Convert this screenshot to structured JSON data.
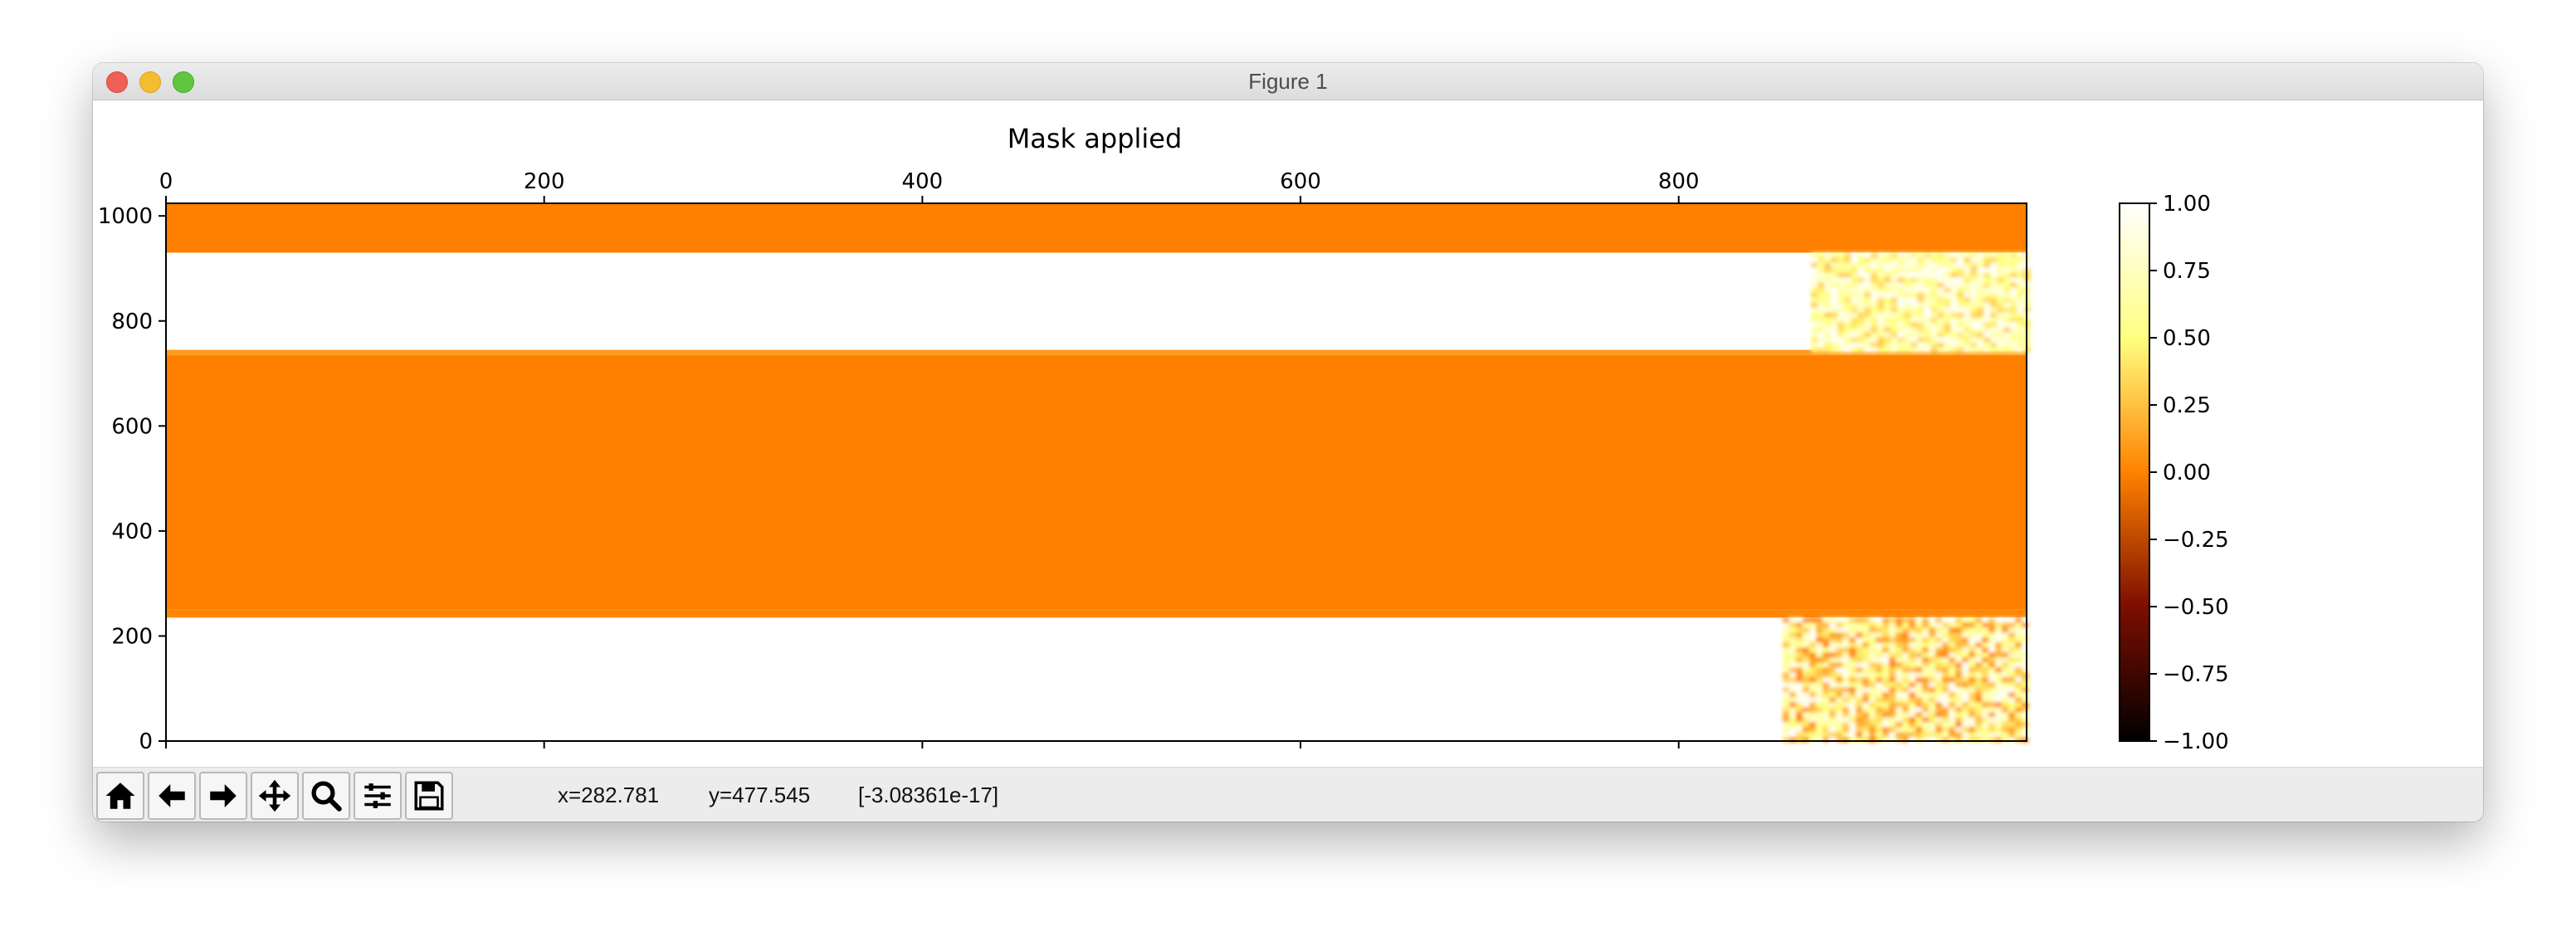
{
  "window": {
    "title": "Figure 1"
  },
  "chart_data": [
    {
      "type": "heatmap",
      "title": "Mask applied",
      "xlabel": "",
      "ylabel": "",
      "xlim": [
        0,
        984
      ],
      "ylim": [
        0,
        1024
      ],
      "x_ticks": [
        0,
        200,
        400,
        600,
        800
      ],
      "y_ticks": [
        0,
        200,
        400,
        600,
        800,
        1000
      ],
      "x_axis_position": "top",
      "colormap": "afmhot",
      "value_range": [
        -1,
        1
      ],
      "bands": [
        {
          "y": [
            0,
            235
          ],
          "value": 1.0
        },
        {
          "y": [
            235,
            250
          ],
          "value": 0.03
        },
        {
          "y": [
            250,
            735
          ],
          "value": 0.0
        },
        {
          "y": [
            735,
            745
          ],
          "value": 0.1
        },
        {
          "y": [
            745,
            930
          ],
          "value": 1.0
        },
        {
          "y": [
            930,
            1024
          ],
          "value": 0.0
        }
      ],
      "noise_regions": [
        {
          "x": [
            855,
            984
          ],
          "y": [
            0,
            235
          ],
          "value_range": [
            0.0,
            1.0
          ]
        },
        {
          "x": [
            870,
            984
          ],
          "y": [
            745,
            930
          ],
          "value_range": [
            0.3,
            1.0
          ]
        }
      ]
    },
    {
      "type": "colorbar",
      "range": [
        -1,
        1
      ],
      "ticks": [
        1.0,
        0.75,
        0.5,
        0.25,
        0.0,
        -0.25,
        -0.5,
        -0.75,
        -1.0
      ],
      "tick_labels": [
        "1.00",
        "0.75",
        "0.50",
        "0.25",
        "0.00",
        "−0.25",
        "−0.50",
        "−0.75",
        "−1.00"
      ]
    }
  ],
  "toolbar": {
    "buttons": [
      {
        "icon": "home-icon"
      },
      {
        "icon": "back-arrow-icon"
      },
      {
        "icon": "forward-arrow-icon"
      },
      {
        "icon": "pan-move-icon"
      },
      {
        "icon": "zoom-magnifier-icon"
      },
      {
        "icon": "configure-subplots-icon"
      },
      {
        "icon": "save-disk-icon"
      }
    ],
    "status": {
      "x": "x=282.781",
      "y": "y=477.545",
      "value": "[-3.08361e-17]"
    }
  }
}
